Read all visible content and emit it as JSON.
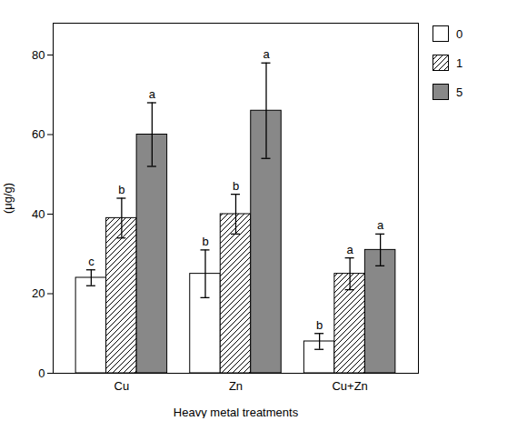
{
  "chart_data": {
    "type": "bar",
    "xlabel": "Heavy metal treatments",
    "ylabel": "(μg/g)",
    "categories": [
      "Cu",
      "Zn",
      "Cu+Zn"
    ],
    "series": [
      {
        "name": "0",
        "color": "white",
        "values": [
          24,
          25,
          8
        ],
        "errors": [
          2,
          6,
          2
        ],
        "annotations": [
          "c",
          "b",
          "b"
        ]
      },
      {
        "name": "1",
        "color": "white",
        "values": [
          39,
          40,
          25
        ],
        "errors": [
          5,
          5,
          4
        ],
        "annotations": [
          "b",
          "b",
          "a"
        ]
      },
      {
        "name": "5",
        "color": "#888888",
        "values": [
          60,
          66,
          31
        ],
        "errors": [
          8,
          12,
          4
        ],
        "annotations": [
          "a",
          "a",
          "a"
        ]
      }
    ],
    "ylim": [
      0,
      88
    ],
    "yticks": [
      0,
      20,
      40,
      60,
      80
    ],
    "legend": "right",
    "grid": false
  }
}
